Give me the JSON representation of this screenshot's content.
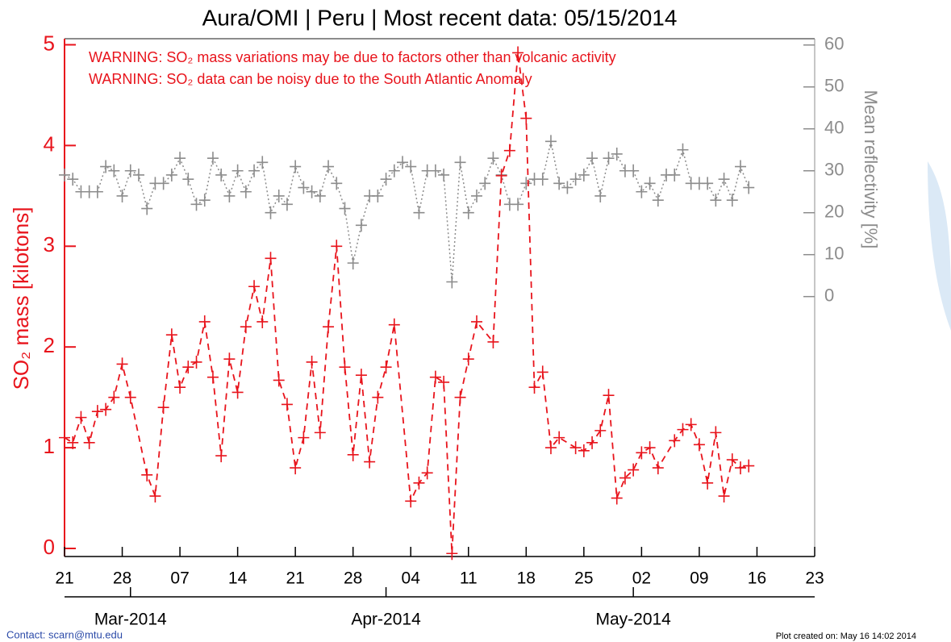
{
  "chart_data": {
    "type": "line",
    "title": "Aura/OMI | Peru | Most recent data: 05/15/2014",
    "annotations": [
      "WARNING: SO₂ mass variations may be due to factors other than volcanic activity",
      "WARNING: SO₂ data can be noisy due to the South Atlantic Anomaly"
    ],
    "y_label": "SO₂ mass [kilotons]",
    "y2_label": "Mean reflectivity [%]",
    "footer_left": "Contact: scarn@mtu.edu",
    "footer_right": "Plot created on: May 16 14:02 2014",
    "xlim": [
      "2014-02-21",
      "2014-05-23"
    ],
    "xticks": [
      {
        "value": "2014-02-21",
        "label": "21"
      },
      {
        "value": "2014-02-28",
        "label": "28"
      },
      {
        "value": "2014-03-07",
        "label": "07"
      },
      {
        "value": "2014-03-14",
        "label": "14"
      },
      {
        "value": "2014-03-21",
        "label": "21"
      },
      {
        "value": "2014-03-28",
        "label": "28"
      },
      {
        "value": "2014-04-04",
        "label": "04"
      },
      {
        "value": "2014-04-11",
        "label": "11"
      },
      {
        "value": "2014-04-18",
        "label": "18"
      },
      {
        "value": "2014-04-25",
        "label": "25"
      },
      {
        "value": "2014-05-02",
        "label": "02"
      },
      {
        "value": "2014-05-09",
        "label": "09"
      },
      {
        "value": "2014-05-16",
        "label": "16"
      },
      {
        "value": "2014-05-23",
        "label": "23"
      }
    ],
    "month_ticks": [
      {
        "value": "2014-03-01",
        "label": "Mar-2014"
      },
      {
        "value": "2014-04-01",
        "label": "Apr-2014"
      },
      {
        "value": "2014-05-01",
        "label": "May-2014"
      }
    ],
    "ylim": [
      -0.08,
      5.06
    ],
    "yticks": [
      0,
      1,
      2,
      3,
      4,
      5
    ],
    "y2lim": [
      -62,
      61.5
    ],
    "y2ticks": [
      0,
      10,
      20,
      30,
      40,
      50,
      60
    ],
    "series": [
      {
        "color": "#e8141c",
        "style": "dashed",
        "x": [
          "2014-02-21",
          "2014-02-22",
          "2014-02-23",
          "2014-02-24",
          "2014-02-25",
          "2014-02-26",
          "2014-02-27",
          "2014-02-28",
          "2014-03-01",
          "2014-03-03",
          "2014-03-04",
          "2014-03-05",
          "2014-03-06",
          "2014-03-07",
          "2014-03-08",
          "2014-03-09",
          "2014-03-10",
          "2014-03-11",
          "2014-03-12",
          "2014-03-13",
          "2014-03-14",
          "2014-03-15",
          "2014-03-16",
          "2014-03-17",
          "2014-03-18",
          "2014-03-19",
          "2014-03-20",
          "2014-03-21",
          "2014-03-22",
          "2014-03-23",
          "2014-03-24",
          "2014-03-25",
          "2014-03-26",
          "2014-03-27",
          "2014-03-28",
          "2014-03-29",
          "2014-03-30",
          "2014-03-31",
          "2014-04-01",
          "2014-04-02",
          "2014-04-04",
          "2014-04-05",
          "2014-04-06",
          "2014-04-07",
          "2014-04-08",
          "2014-04-09",
          "2014-04-10",
          "2014-04-11",
          "2014-04-12",
          "2014-04-14",
          "2014-04-15",
          "2014-04-16",
          "2014-04-17",
          "2014-04-18",
          "2014-04-19",
          "2014-04-20",
          "2014-04-21",
          "2014-04-22",
          "2014-04-24",
          "2014-04-25",
          "2014-04-26",
          "2014-04-27",
          "2014-04-28",
          "2014-04-29",
          "2014-04-30",
          "2014-05-01",
          "2014-05-02",
          "2014-05-03",
          "2014-05-04",
          "2014-05-06",
          "2014-05-07",
          "2014-05-08",
          "2014-05-09",
          "2014-05-10",
          "2014-05-11",
          "2014-05-12",
          "2014-05-13",
          "2014-05-14",
          "2014-05-15"
        ],
        "values": [
          1.1,
          1.05,
          1.3,
          1.05,
          1.36,
          1.38,
          1.5,
          1.83,
          1.5,
          0.73,
          0.52,
          1.4,
          2.12,
          1.6,
          1.8,
          1.85,
          2.25,
          1.7,
          0.92,
          1.88,
          1.55,
          2.2,
          2.6,
          2.25,
          2.88,
          1.67,
          1.43,
          0.8,
          1.1,
          1.85,
          1.15,
          2.2,
          3.0,
          1.8,
          0.93,
          1.72,
          0.86,
          1.5,
          1.8,
          2.22,
          0.47,
          0.65,
          0.75,
          1.7,
          1.65,
          -0.05,
          1.5,
          1.88,
          2.25,
          2.05,
          3.7,
          3.95,
          4.92,
          4.27,
          1.6,
          1.75,
          1.0,
          1.1,
          1.0,
          0.97,
          1.05,
          1.17,
          1.52,
          0.5,
          0.7,
          0.78,
          0.95,
          1.0,
          0.8,
          1.07,
          1.18,
          1.23,
          1.03,
          0.65,
          1.15,
          0.52,
          0.88,
          0.8,
          0.82
        ]
      },
      {
        "color": "#8c8c8c",
        "style": "dotted",
        "axis": "y2",
        "x": [
          "2014-02-21",
          "2014-02-22",
          "2014-02-23",
          "2014-02-24",
          "2014-02-25",
          "2014-02-26",
          "2014-02-27",
          "2014-02-28",
          "2014-03-01",
          "2014-03-02",
          "2014-03-03",
          "2014-03-04",
          "2014-03-05",
          "2014-03-06",
          "2014-03-07",
          "2014-03-08",
          "2014-03-09",
          "2014-03-10",
          "2014-03-11",
          "2014-03-12",
          "2014-03-13",
          "2014-03-14",
          "2014-03-15",
          "2014-03-16",
          "2014-03-17",
          "2014-03-18",
          "2014-03-19",
          "2014-03-20",
          "2014-03-21",
          "2014-03-22",
          "2014-03-23",
          "2014-03-24",
          "2014-03-25",
          "2014-03-26",
          "2014-03-27",
          "2014-03-28",
          "2014-03-29",
          "2014-03-30",
          "2014-03-31",
          "2014-04-01",
          "2014-04-02",
          "2014-04-03",
          "2014-04-04",
          "2014-04-05",
          "2014-04-06",
          "2014-04-07",
          "2014-04-08",
          "2014-04-09",
          "2014-04-10",
          "2014-04-11",
          "2014-04-12",
          "2014-04-13",
          "2014-04-14",
          "2014-04-15",
          "2014-04-16",
          "2014-04-17",
          "2014-04-18",
          "2014-04-19",
          "2014-04-20",
          "2014-04-21",
          "2014-04-22",
          "2014-04-23",
          "2014-04-24",
          "2014-04-25",
          "2014-04-26",
          "2014-04-27",
          "2014-04-28",
          "2014-04-29",
          "2014-04-30",
          "2014-05-01",
          "2014-05-02",
          "2014-05-03",
          "2014-05-04",
          "2014-05-05",
          "2014-05-06",
          "2014-05-07",
          "2014-05-08",
          "2014-05-09",
          "2014-05-10",
          "2014-05-11",
          "2014-05-12",
          "2014-05-13",
          "2014-05-14",
          "2014-05-15"
        ],
        "values": [
          29,
          28,
          25,
          25,
          25,
          31,
          30,
          24,
          30,
          29,
          21,
          27,
          27,
          29,
          33,
          28,
          22,
          23,
          33,
          29,
          24,
          30,
          25,
          30,
          32,
          20,
          24,
          22,
          31,
          26,
          25,
          24,
          31,
          27,
          21,
          8,
          17,
          24,
          24,
          28,
          30,
          32,
          31,
          20,
          30,
          30,
          29,
          3.5,
          32,
          20,
          24,
          27,
          33,
          29,
          22,
          22,
          27,
          28,
          28,
          37,
          27,
          26,
          28,
          29,
          33,
          24,
          33,
          34,
          30,
          30,
          25,
          27,
          23,
          29,
          29,
          35,
          27,
          27,
          27,
          23,
          28,
          23,
          31,
          26
        ]
      }
    ]
  }
}
